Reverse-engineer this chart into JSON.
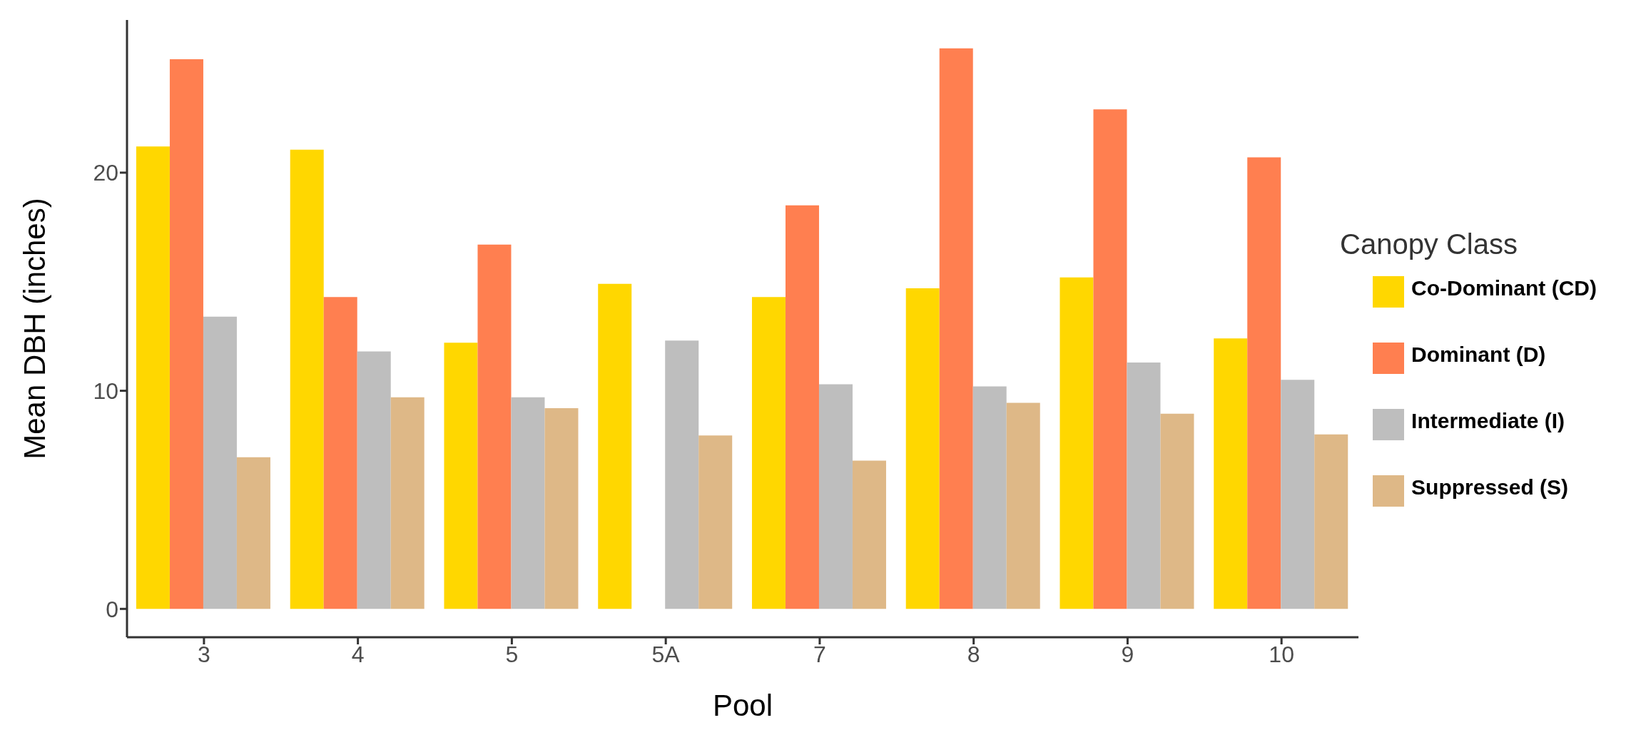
{
  "chart_data": {
    "type": "bar",
    "xlabel": "Pool",
    "ylabel": "Mean DBH (inches)",
    "legend_title": "Canopy Class",
    "categories": [
      "3",
      "4",
      "5",
      "5A",
      "7",
      "8",
      "9",
      "10"
    ],
    "series": [
      {
        "name": "Co-Dominant (CD)",
        "color": "#ffd700",
        "values": [
          21.2,
          21.05,
          12.2,
          14.9,
          14.3,
          14.7,
          15.2,
          12.4
        ]
      },
      {
        "name": "Dominant (D)",
        "color": "#ff7f50",
        "values": [
          25.2,
          14.3,
          16.7,
          null,
          18.5,
          25.7,
          22.9,
          20.7
        ]
      },
      {
        "name": "Intermediate (I)",
        "color": "#bebebe",
        "values": [
          13.4,
          11.8,
          9.7,
          12.3,
          10.3,
          10.2,
          11.3,
          10.5
        ]
      },
      {
        "name": "Suppressed (S)",
        "color": "#deb887",
        "values": [
          6.95,
          9.7,
          9.2,
          7.95,
          6.8,
          9.45,
          8.95,
          8.0
        ]
      }
    ],
    "ylim": [
      -1.3,
      27
    ],
    "yticks": [
      0,
      10,
      20
    ],
    "grid": false,
    "legend": "right"
  }
}
